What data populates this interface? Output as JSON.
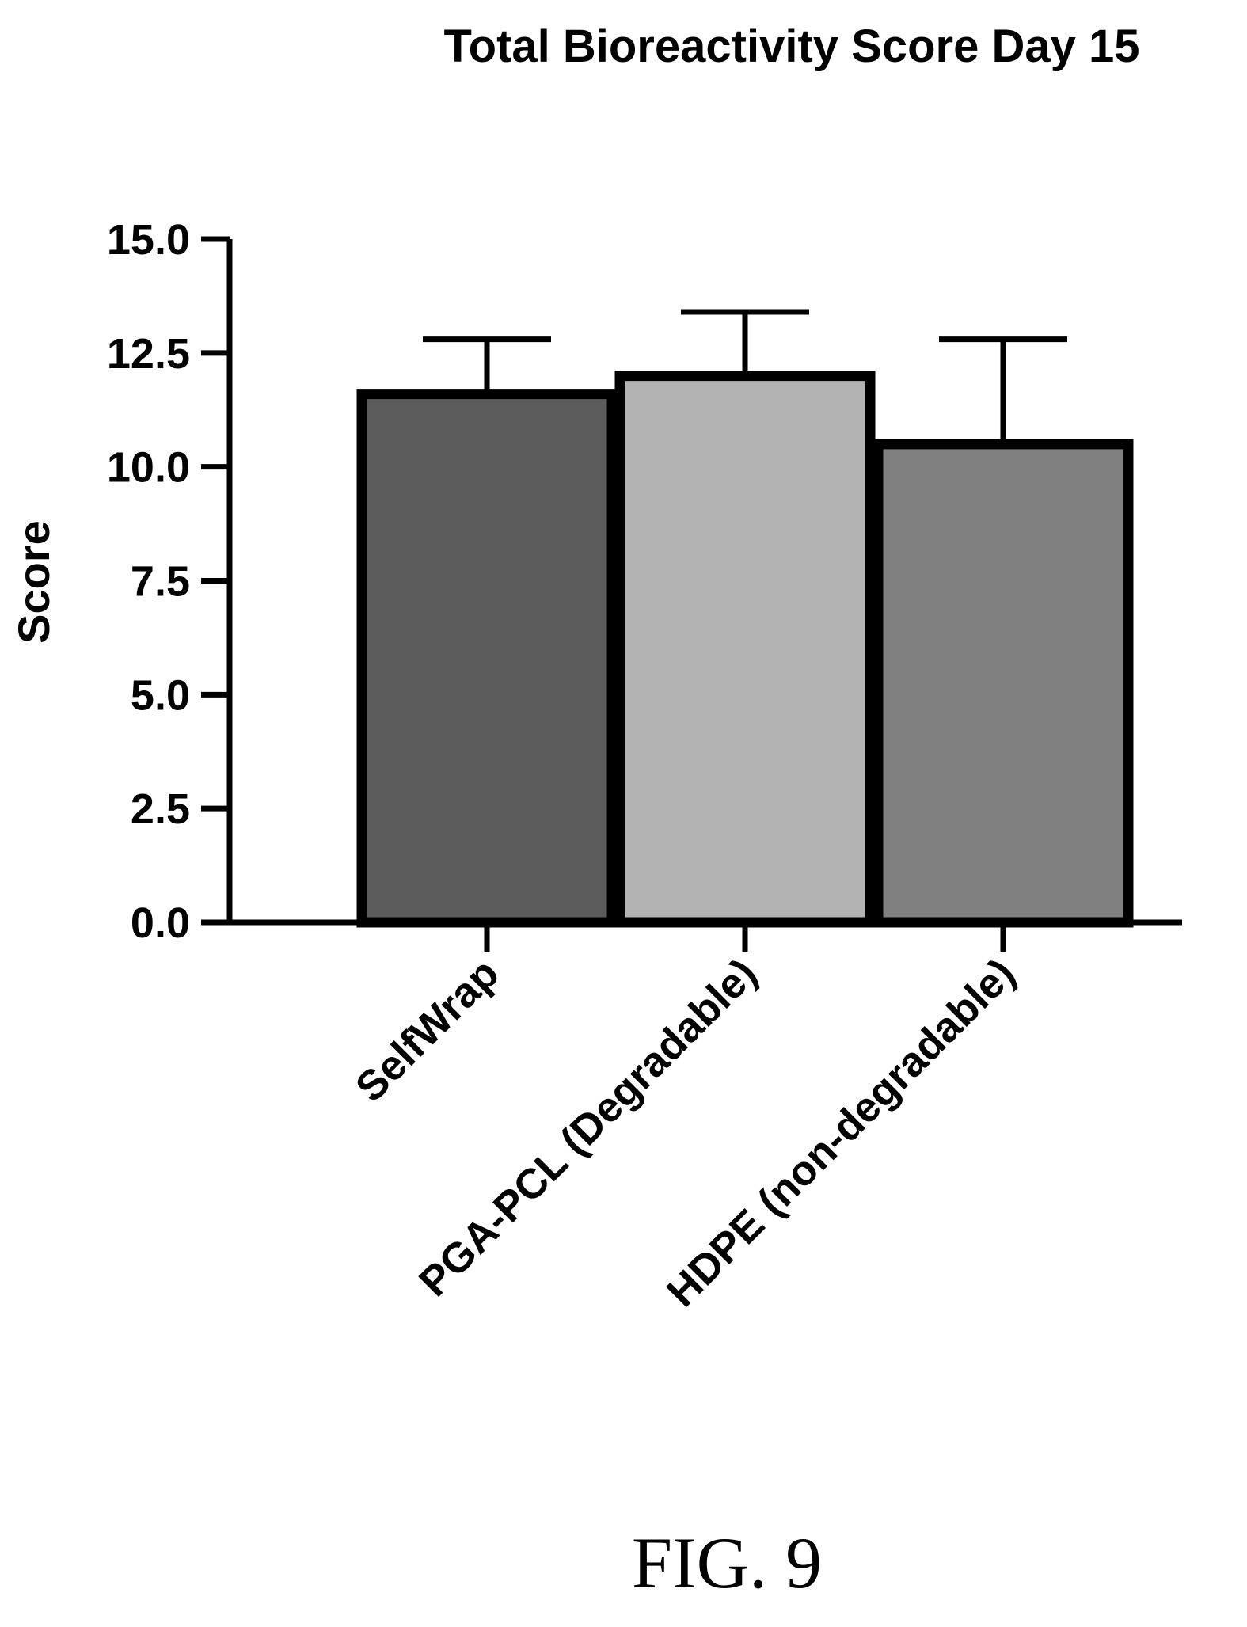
{
  "figure_label": "FIG. 9",
  "colors": {
    "background": "#ffffff",
    "ink": "#000000",
    "bar_fills": [
      "#5c5c5c",
      "#b3b3b3",
      "#808080"
    ]
  },
  "chart_data": {
    "type": "bar",
    "title": "Total Bioreactivity Score Day 15",
    "xlabel": "",
    "ylabel": "Score",
    "ylim": [
      0,
      15
    ],
    "yticks": [
      0,
      2.5,
      5,
      7.5,
      10,
      12.5,
      15
    ],
    "ytick_labels": [
      "0.0",
      "2.5",
      "5.0",
      "7.5",
      "10.0",
      "12.5",
      "15.0"
    ],
    "categories": [
      "SelfWrap",
      "PGA-PCL (Degradable)",
      "HDPE (non-degradable)"
    ],
    "values": [
      11.6,
      12.0,
      10.5
    ],
    "error_upper": [
      1.2,
      1.4,
      2.3
    ],
    "grid": false,
    "legend": "none"
  }
}
